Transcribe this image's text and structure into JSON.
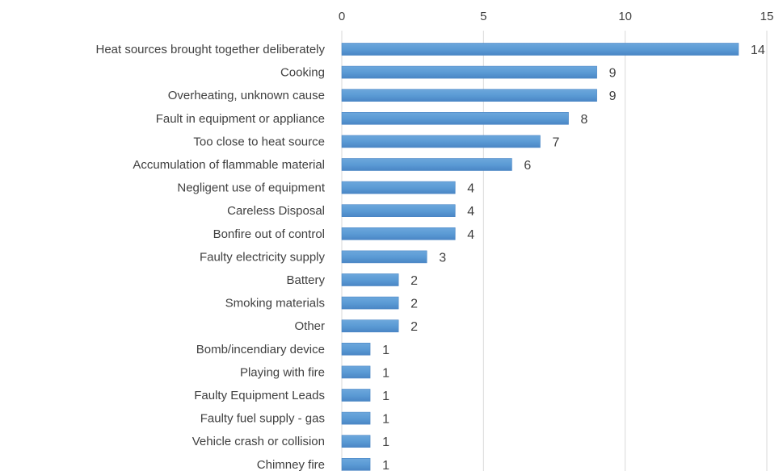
{
  "chart_data": {
    "type": "bar",
    "orientation": "horizontal",
    "title": "",
    "xlabel": "",
    "ylabel": "",
    "xlim": [
      0,
      15
    ],
    "x_ticks": [
      0,
      5,
      10,
      15
    ],
    "x_tick_labels": [
      "0",
      "5",
      "10",
      "15"
    ],
    "x_axis_position": "top",
    "grid": "vertical",
    "legend": "none",
    "bar_color": "#5B9BD5",
    "bar_color_dark": "#4A86C5",
    "categories": [
      "Heat sources brought together deliberately",
      "Cooking",
      "Overheating, unknown cause",
      "Fault in equipment or appliance",
      "Too close to heat source",
      "Accumulation of flammable material",
      "Negligent use of equipment",
      "Careless Disposal",
      "Bonfire out of control",
      "Faulty electricity supply",
      "Battery",
      "Smoking materials",
      "Other",
      "Bomb/incendiary device",
      "Playing with fire",
      "Faulty Equipment Leads",
      "Faulty fuel supply - gas",
      "Vehicle crash or collision",
      "Chimney fire"
    ],
    "values": [
      14,
      9,
      9,
      8,
      7,
      6,
      4,
      4,
      4,
      3,
      2,
      2,
      2,
      1,
      1,
      1,
      1,
      1,
      1
    ],
    "data_labels": [
      "14",
      "9",
      "9",
      "8",
      "7",
      "6",
      "4",
      "4",
      "4",
      "3",
      "2",
      "2",
      "2",
      "1",
      "1",
      "1",
      "1",
      "1",
      "1"
    ]
  }
}
